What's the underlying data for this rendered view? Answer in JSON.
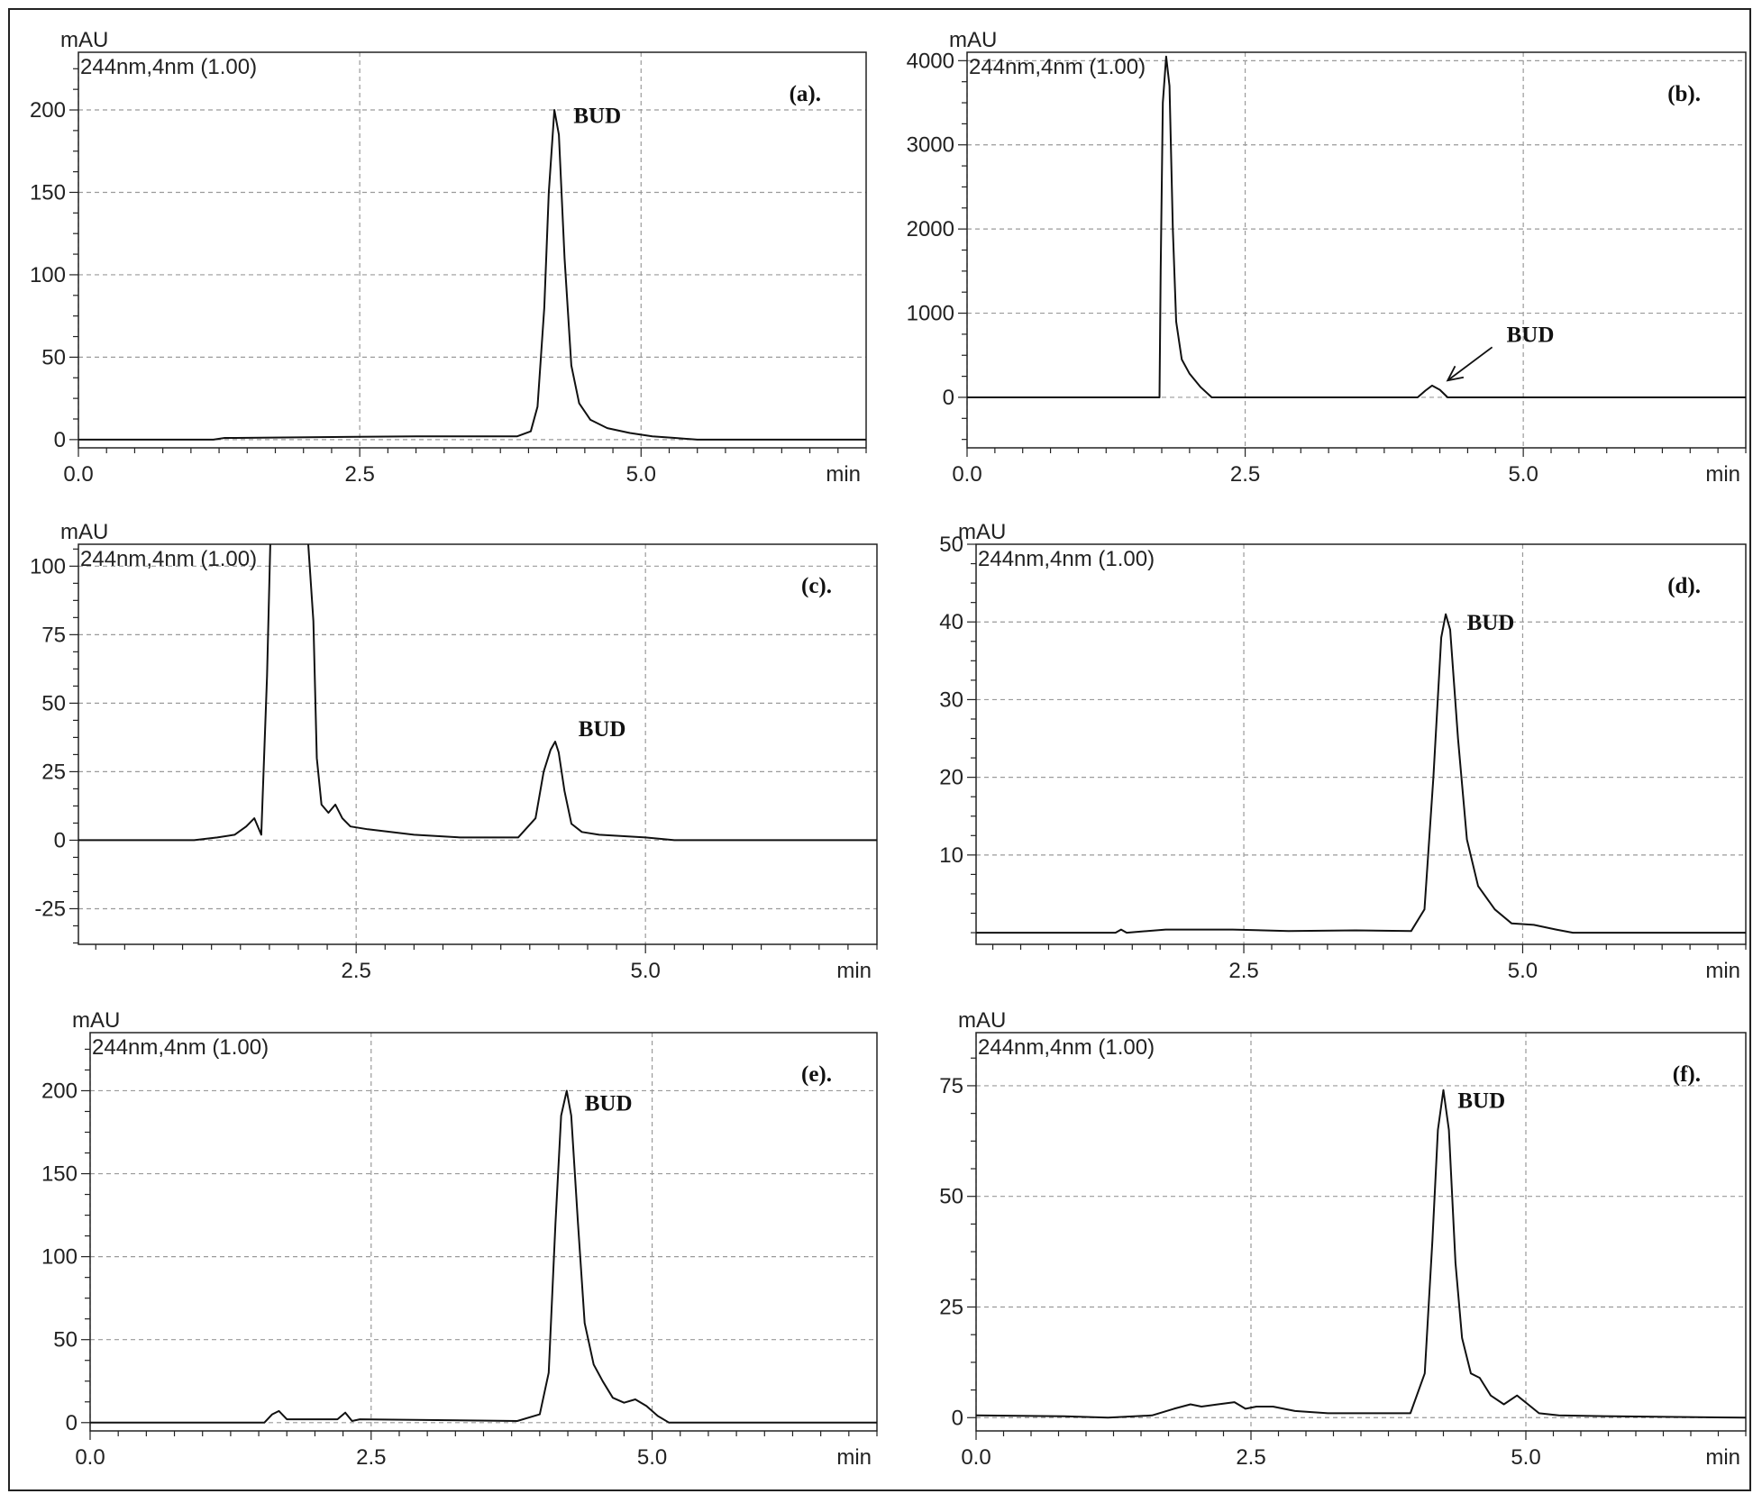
{
  "figure": {
    "colors": {
      "line": "#111111",
      "grid": "#9a9a9a",
      "frame": "#222222"
    }
  },
  "chart_data": [
    {
      "type": "line",
      "panel_label": "(a).",
      "channel": "244nm,4nm (1.00)",
      "y_unit": "mAU",
      "x_unit": "min",
      "xlim": [
        0,
        7
      ],
      "ylim": [
        -5,
        235
      ],
      "x_ticks": [
        "0.0",
        "2.5",
        "5.0"
      ],
      "x_tick_values": [
        0,
        2.5,
        5.0
      ],
      "y_ticks": [
        "0",
        "50",
        "100",
        "150",
        "200"
      ],
      "y_tick_values": [
        0,
        50,
        100,
        150,
        200
      ],
      "annotation": {
        "text": "BUD",
        "x": 4.4,
        "y": 192,
        "arrow": false
      },
      "series": [
        {
          "x": [
            0,
            1.2,
            1.3,
            1.4,
            3.0,
            3.9,
            4.02,
            4.08,
            4.14,
            4.18,
            4.23,
            4.27,
            4.32,
            4.38,
            4.45,
            4.55,
            4.7,
            4.9,
            5.1,
            5.3,
            5.5,
            7
          ],
          "y": [
            0,
            0,
            1,
            1,
            2,
            2,
            5,
            20,
            80,
            150,
            200,
            185,
            110,
            45,
            22,
            12,
            7,
            4,
            2,
            1,
            0,
            0
          ]
        }
      ]
    },
    {
      "type": "line",
      "panel_label": "(b).",
      "channel": "244nm,4nm (1.00)",
      "y_unit": "mAU",
      "x_unit": "min",
      "xlim": [
        0,
        7
      ],
      "ylim": [
        -600,
        4100
      ],
      "x_ticks": [
        "0.0",
        "2.5",
        "5.0"
      ],
      "x_tick_values": [
        0,
        2.5,
        5.0
      ],
      "y_ticks": [
        "0",
        "1000",
        "2000",
        "3000",
        "4000"
      ],
      "y_tick_values": [
        0,
        1000,
        2000,
        3000,
        4000
      ],
      "annotation": {
        "text": "BUD",
        "x": 4.85,
        "y": 660,
        "arrow": true,
        "arrow_to": [
          4.32,
          200
        ]
      },
      "series": [
        {
          "x": [
            0,
            1.73,
            1.74,
            1.76,
            1.79,
            1.82,
            1.85,
            1.88,
            1.93,
            2.0,
            2.1,
            2.2,
            4.05,
            4.12,
            4.18,
            4.25,
            4.32,
            7
          ],
          "y": [
            0,
            0,
            1500,
            3500,
            4050,
            3700,
            2000,
            900,
            450,
            280,
            120,
            0,
            0,
            80,
            140,
            90,
            0,
            0
          ]
        }
      ]
    },
    {
      "type": "line",
      "panel_label": "(c).",
      "channel": "244nm,4nm (1.00)",
      "y_unit": "mAU",
      "x_unit": "min",
      "xlim": [
        0.1,
        7
      ],
      "ylim": [
        -38,
        108
      ],
      "x_ticks": [
        "2.5",
        "5.0"
      ],
      "x_tick_values": [
        2.5,
        5.0
      ],
      "y_ticks": [
        "-25",
        "0",
        "25",
        "50",
        "75",
        "100"
      ],
      "y_tick_values": [
        -25,
        0,
        25,
        50,
        75,
        100
      ],
      "annotation": {
        "text": "BUD",
        "x": 4.42,
        "y": 38,
        "arrow": false
      },
      "series": [
        {
          "x": [
            0.1,
            1.1,
            1.3,
            1.45,
            1.55,
            1.62,
            1.68,
            1.73,
            1.76,
            1.8,
            1.9,
            2.0,
            2.08,
            2.13,
            2.16,
            2.2,
            2.26,
            2.32,
            2.38,
            2.45,
            2.6,
            3.0,
            3.4,
            3.9,
            4.05,
            4.12,
            4.18,
            4.22,
            4.25,
            4.3,
            4.36,
            4.45,
            4.6,
            5.0,
            5.25,
            7
          ],
          "y": [
            0,
            0,
            1,
            2,
            5,
            8,
            2,
            60,
            112,
            112,
            112,
            112,
            112,
            80,
            30,
            13,
            10,
            13,
            8,
            5,
            4,
            2,
            1,
            1,
            8,
            25,
            33,
            36,
            32,
            18,
            6,
            3,
            2,
            1,
            0,
            0
          ]
        }
      ]
    },
    {
      "type": "line",
      "panel_label": "(d).",
      "channel": "244nm,4nm (1.00)",
      "y_unit": "mAU",
      "x_unit": "min",
      "xlim": [
        0.1,
        7
      ],
      "ylim": [
        -1.5,
        50
      ],
      "x_ticks": [
        "2.5",
        "5.0"
      ],
      "x_tick_values": [
        2.5,
        5.0
      ],
      "y_ticks": [
        "10",
        "20",
        "30",
        "40",
        "50"
      ],
      "y_tick_values": [
        10,
        20,
        30,
        40,
        50
      ],
      "annotation": {
        "text": "BUD",
        "x": 4.5,
        "y": 39,
        "arrow": false
      },
      "series": [
        {
          "x": [
            0.1,
            1.35,
            1.4,
            1.45,
            1.8,
            2.4,
            2.9,
            3.5,
            4.0,
            4.12,
            4.2,
            4.27,
            4.31,
            4.35,
            4.42,
            4.5,
            4.6,
            4.75,
            4.9,
            5.1,
            5.3,
            5.45,
            7
          ],
          "y": [
            0,
            0,
            0.4,
            0,
            0.4,
            0.4,
            0.2,
            0.3,
            0.2,
            3,
            20,
            38,
            41,
            39,
            25,
            12,
            6,
            3,
            1.2,
            1,
            0.4,
            0,
            0
          ]
        }
      ]
    },
    {
      "type": "line",
      "panel_label": "(e).",
      "channel": "244nm,4nm (1.00)",
      "y_unit": "mAU",
      "x_unit": "min",
      "xlim": [
        0,
        7
      ],
      "ylim": [
        -5,
        235
      ],
      "x_ticks": [
        "0.0",
        "2.5",
        "5.0"
      ],
      "x_tick_values": [
        0,
        2.5,
        5.0
      ],
      "y_ticks": [
        "0",
        "50",
        "100",
        "150",
        "200"
      ],
      "y_tick_values": [
        0,
        50,
        100,
        150,
        200
      ],
      "annotation": {
        "text": "BUD",
        "x": 4.4,
        "y": 188,
        "arrow": false
      },
      "series": [
        {
          "x": [
            0,
            1.55,
            1.62,
            1.68,
            1.75,
            2.2,
            2.27,
            2.33,
            2.4,
            3.8,
            4.0,
            4.08,
            4.14,
            4.19,
            4.24,
            4.28,
            4.34,
            4.4,
            4.48,
            4.56,
            4.65,
            4.75,
            4.85,
            4.95,
            5.05,
            5.15,
            7
          ],
          "y": [
            0,
            0,
            5,
            7,
            2,
            2,
            6,
            1,
            2,
            1,
            5,
            30,
            120,
            185,
            200,
            185,
            120,
            60,
            35,
            25,
            15,
            12,
            14,
            10,
            4,
            0,
            0
          ]
        }
      ]
    },
    {
      "type": "line",
      "panel_label": "(f).",
      "channel": "244nm,4nm (1.00)",
      "y_unit": "mAU",
      "x_unit": "min",
      "xlim": [
        0,
        7
      ],
      "ylim": [
        -3,
        87
      ],
      "x_ticks": [
        "0.0",
        "2.5",
        "5.0"
      ],
      "x_tick_values": [
        0,
        2.5,
        5.0
      ],
      "y_ticks": [
        "0",
        "25",
        "50",
        "75"
      ],
      "y_tick_values": [
        0,
        25,
        50,
        75
      ],
      "annotation": {
        "text": "BUD",
        "x": 4.38,
        "y": 70,
        "arrow": false
      },
      "series": [
        {
          "x": [
            0,
            0.8,
            1.2,
            1.6,
            1.8,
            1.95,
            2.05,
            2.2,
            2.35,
            2.45,
            2.55,
            2.7,
            2.9,
            3.2,
            3.6,
            3.95,
            4.08,
            4.15,
            4.2,
            4.25,
            4.3,
            4.36,
            4.42,
            4.5,
            4.58,
            4.68,
            4.8,
            4.92,
            5.02,
            5.12,
            5.3,
            5.8,
            7
          ],
          "y": [
            0.5,
            0.3,
            0,
            0.5,
            2,
            3,
            2.5,
            3,
            3.5,
            2,
            2.5,
            2.5,
            1.5,
            1,
            1,
            1,
            10,
            40,
            65,
            74,
            65,
            35,
            18,
            10,
            9,
            5,
            3,
            5,
            3,
            1,
            0.5,
            0.3,
            0
          ]
        }
      ]
    }
  ]
}
